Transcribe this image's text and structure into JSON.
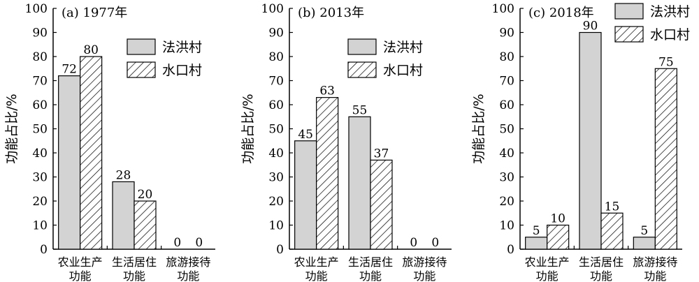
{
  "chart_data": [
    {
      "type": "bar",
      "title": "(a) 1977年",
      "ylabel": "功能占比/%",
      "ylim": [
        0,
        100
      ],
      "yticks": [
        0,
        10,
        20,
        30,
        40,
        50,
        60,
        70,
        80,
        90,
        100
      ],
      "categories": [
        [
          "农业生产",
          "功能"
        ],
        [
          "生活居住",
          "功能"
        ],
        [
          "旅游接待",
          "功能"
        ]
      ],
      "series": [
        {
          "name": "法洪村",
          "values": [
            72,
            28,
            0
          ]
        },
        {
          "name": "水口村",
          "values": [
            80,
            20,
            0
          ]
        }
      ],
      "legend": "upper-right"
    },
    {
      "type": "bar",
      "title": "(b) 2013年",
      "ylabel": "功能占比/%",
      "ylim": [
        0,
        100
      ],
      "yticks": [
        0,
        10,
        20,
        30,
        40,
        50,
        60,
        70,
        80,
        90,
        100
      ],
      "categories": [
        [
          "农业生产",
          "功能"
        ],
        [
          "生活居住",
          "功能"
        ],
        [
          "旅游接待",
          "功能"
        ]
      ],
      "series": [
        {
          "name": "法洪村",
          "values": [
            45,
            55,
            0
          ]
        },
        {
          "name": "水口村",
          "values": [
            63,
            37,
            0
          ]
        }
      ],
      "legend": "upper-right"
    },
    {
      "type": "bar",
      "title": "(c) 2018年",
      "ylabel": "功能占比/%",
      "ylim": [
        0,
        100
      ],
      "yticks": [
        0,
        10,
        20,
        30,
        40,
        50,
        60,
        70,
        80,
        90,
        100
      ],
      "categories": [
        [
          "农业生产",
          "功能"
        ],
        [
          "生活居住",
          "功能"
        ],
        [
          "旅游接待",
          "功能"
        ]
      ],
      "series": [
        {
          "name": "法洪村",
          "values": [
            5,
            90,
            5
          ]
        },
        {
          "name": "水口村",
          "values": [
            10,
            15,
            75
          ]
        }
      ],
      "legend": "upper-right"
    }
  ],
  "colors": {
    "series_fill": "#d3d3d3",
    "hatch": "#000000",
    "axis": "#000000"
  }
}
